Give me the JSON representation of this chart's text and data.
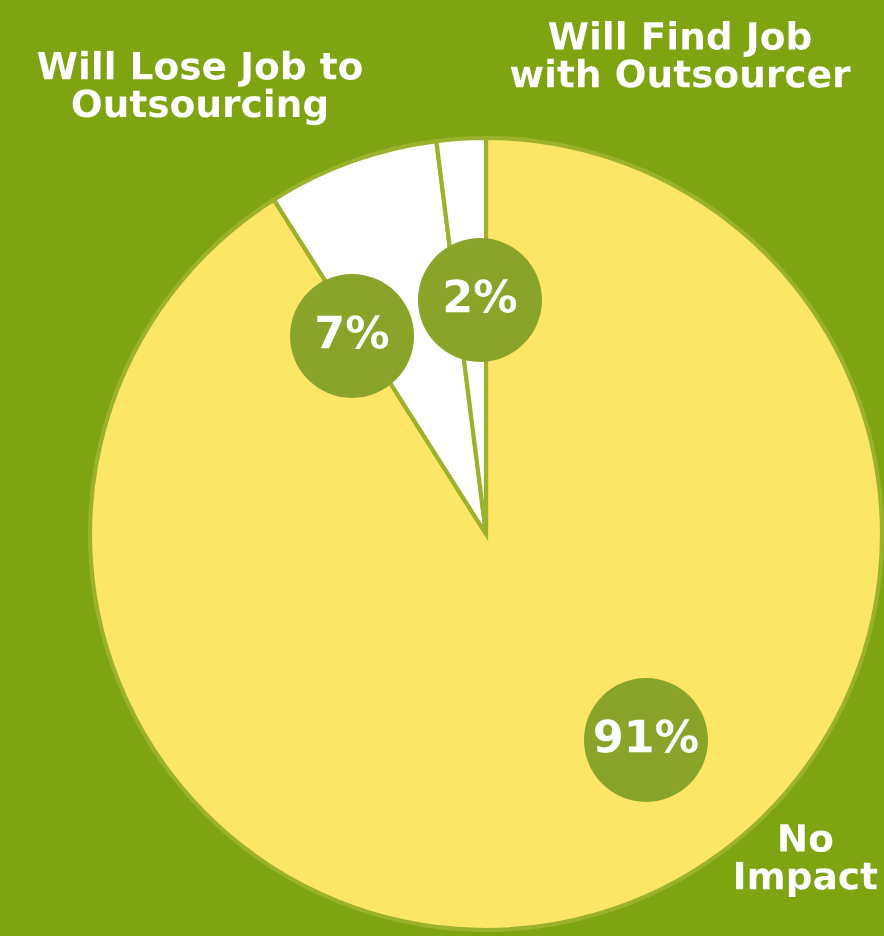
{
  "chart_data": {
    "type": "pie",
    "categories": [
      "No\nImpact",
      "Will Lose Job to\nOutsourcing",
      "Will Find Job\nwith Outsourcer"
    ],
    "values": [
      91,
      7,
      2
    ],
    "value_labels": [
      "91%",
      "7%",
      "2%"
    ],
    "colors": [
      "#fde566",
      "#ffffff",
      "#ffffff"
    ]
  }
}
